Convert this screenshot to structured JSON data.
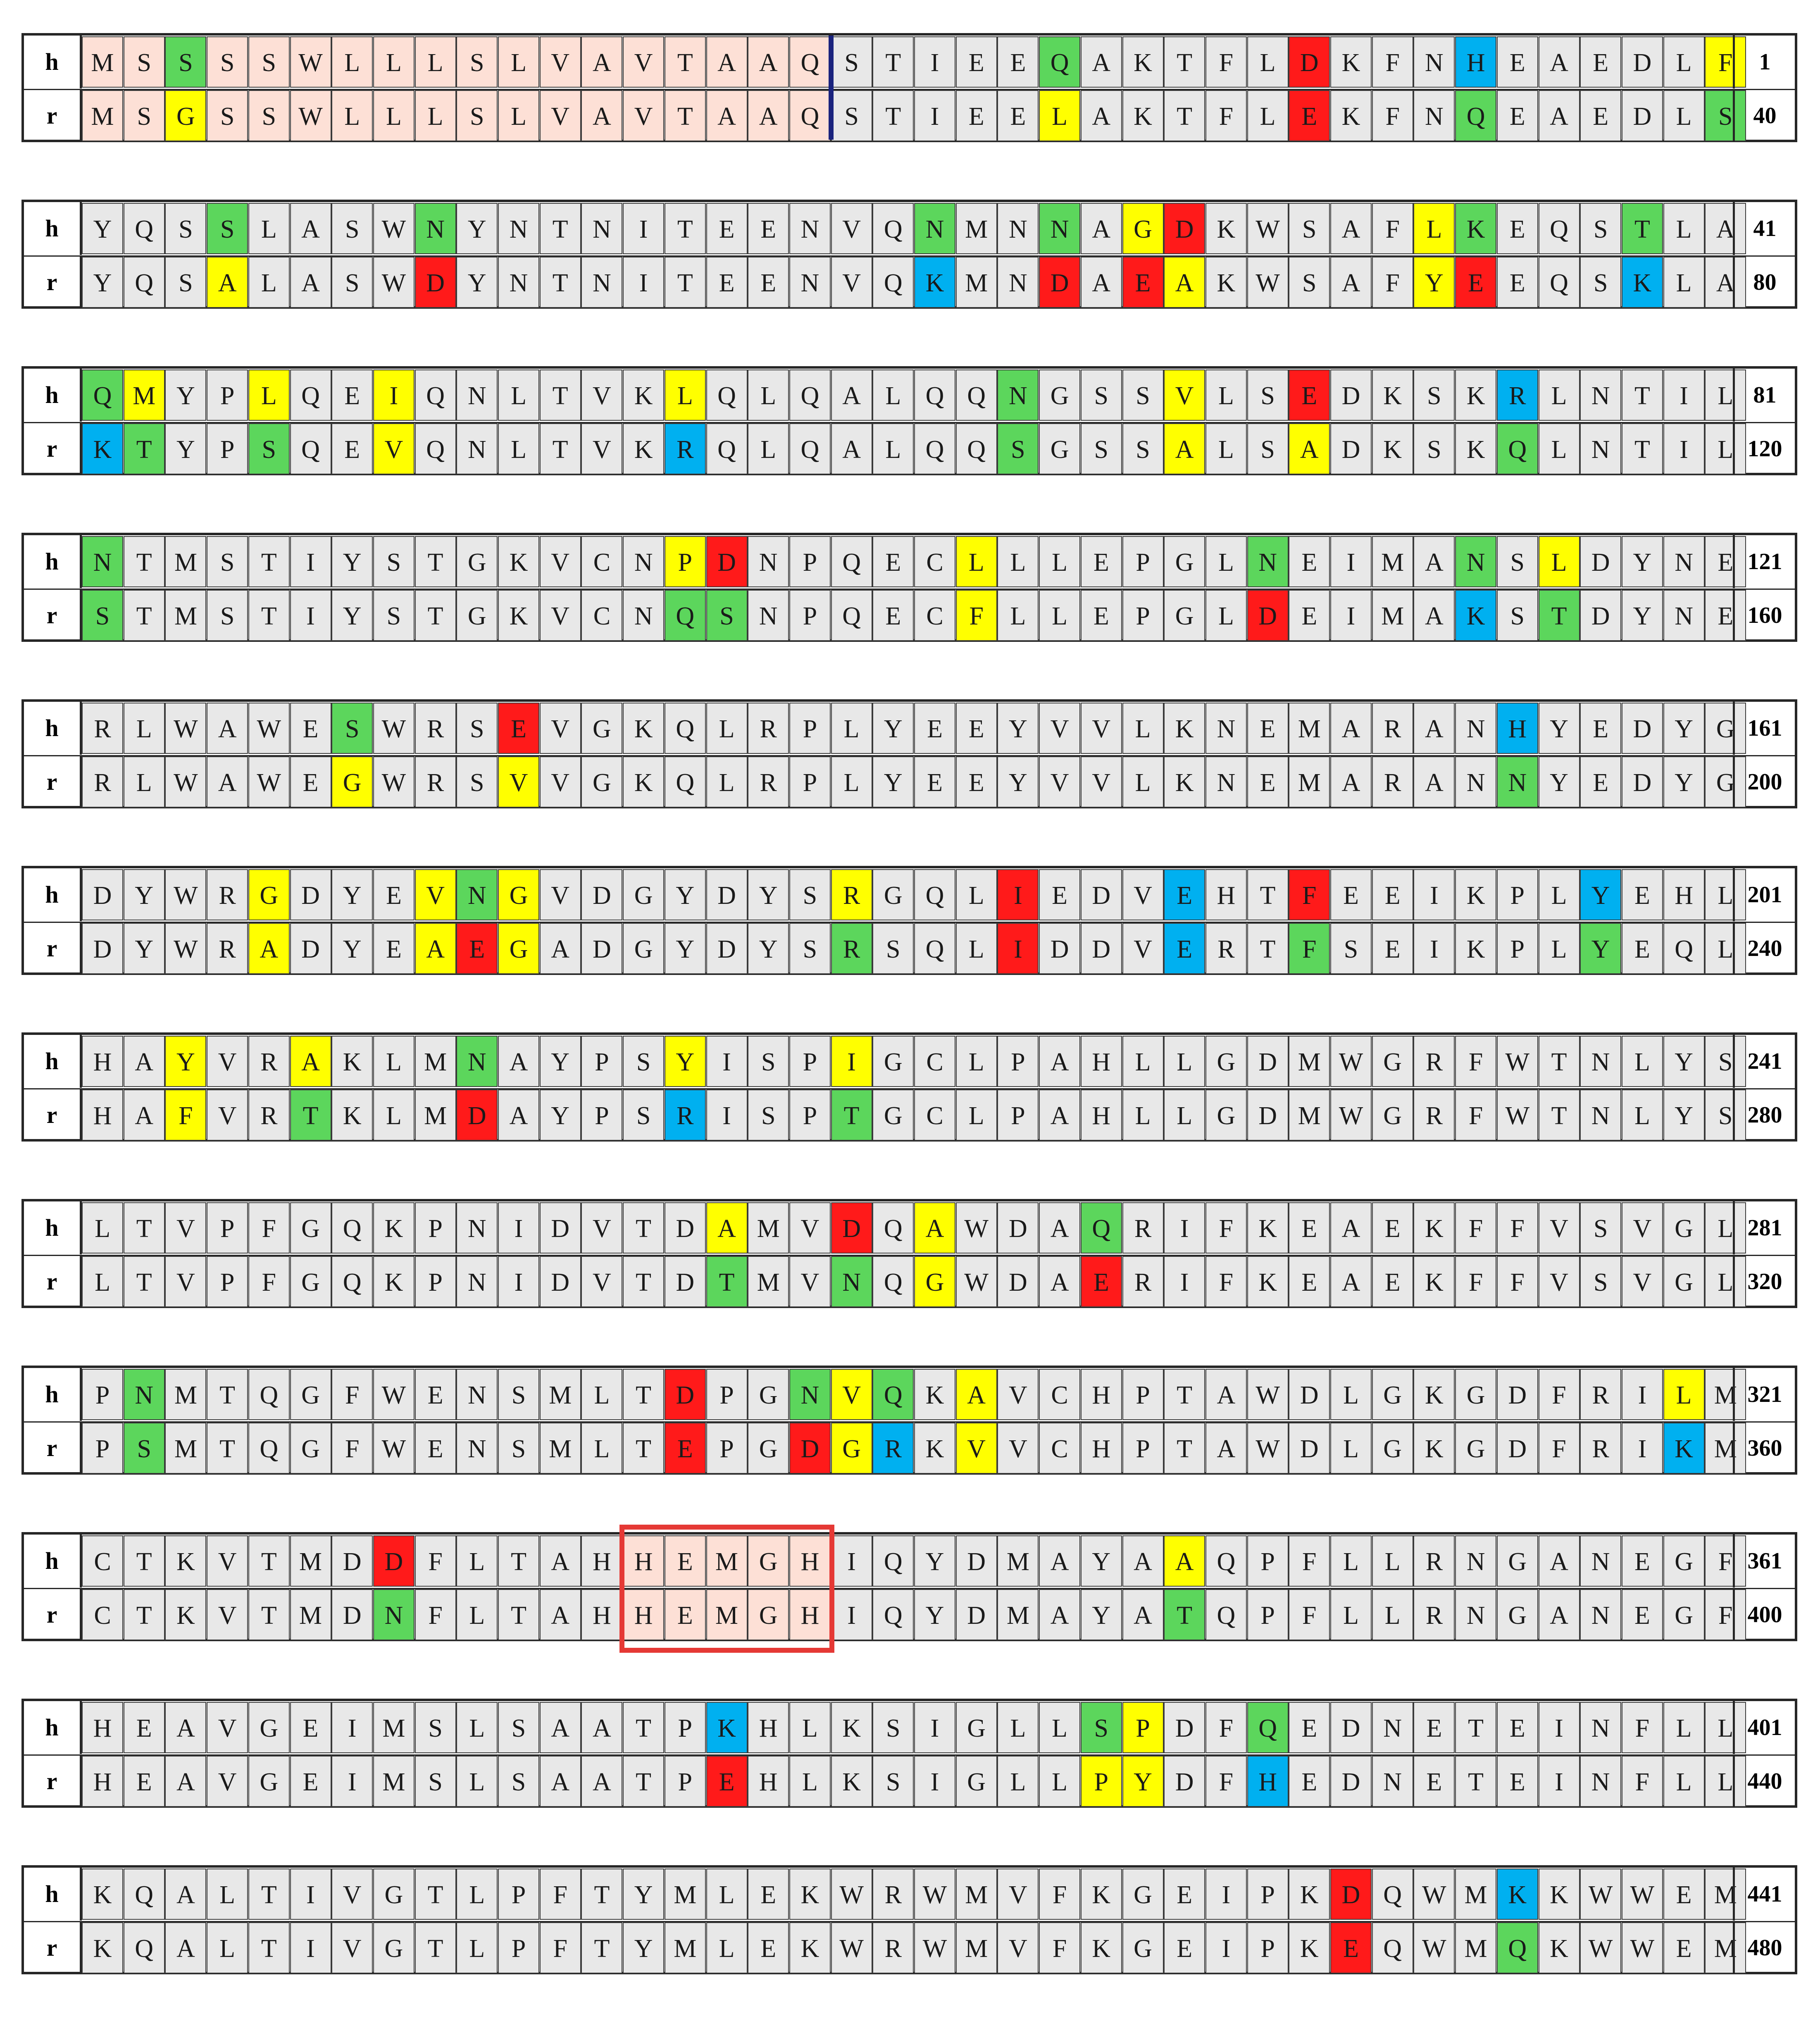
{
  "colors": {
    "identical": "#e8e8e8",
    "signal": "#fde0d6",
    "conservative": "#5cd65c",
    "semi": "#ffff00",
    "acidic": "#ff1a1a",
    "basic": "#00b0f0",
    "motif_border": "#e53935",
    "cleavage_mark": "#1a237e"
  },
  "labels": {
    "human": "h",
    "rat": "r"
  },
  "blocks": [
    {
      "h_start": "1",
      "r_end": "40",
      "h": "MSSSSWLLLSLVAVTAAQSTIEEQAKTFLDKFNHEAEDLF",
      "r": "MSGSSWLLLSLVAVTAAQSTIEELAKTFLEKFNQEAEDLS",
      "hc": "ppgppppppppppppppp.....g.....a...b.....y",
      "rc": "ppyppppppppppppppp.....y.....a...g.....g"
    },
    {
      "h_start": "41",
      "r_end": "80",
      "h": "YQSSLASWNYNTNITEENVQNMNNAGDKWSAFLKEQSTLA",
      "r": "YQSALASWDYNTNITEENVQKMNDAEAKWSAFYEEQSKLA",
      "hc": "...g....g...........g..g.ya.....yg...g..",
      "rc": "...y....a...........b..a.ay.....ya...b.."
    },
    {
      "h_start": "81",
      "r_end": "120",
      "h": "QMYPLQEIQNLTVKLQLQALQQNGSSVLSEDKSKRLNTIL",
      "r": "KTYPSQEVQNLTVKRQLQALQQSGSSALSADKSKQLNTIL",
      "hc": "gy..y..y......y.......g...y..a....b.....",
      "rc": "bg..g..y......b.......g...y..y....g....."
    },
    {
      "h_start": "121",
      "r_end": "160",
      "h": "NTMSTIYSTGKVCNPDNPQECLLLEPGLNEIMANSLDYNE",
      "r": "STMSTIYSTGKVCNQSNPQECFLLEPGLDEIMAKSTDYNE",
      "hc": "g.............ya.....y......g....g.y....",
      "rc": "g.............gg.....y......a....b.g...."
    },
    {
      "h_start": "161",
      "r_end": "200",
      "h": "RLWAWESWRSEVGKQLRPLYEEYVVLKNEMARANHYEDYG",
      "r": "RLWAWEGWRSVVGKQLRPLYEEYVVLKNEMARANNYEDYG",
      "hc": "......g...a.......................b.....",
      "rc": "......y...y.......................g....."
    },
    {
      "h_start": "201",
      "r_end": "240",
      "h": "DYWRGDYEVNGVDGYDYSRGQLIEDVEHTFEEIKPLYEHL",
      "r": "DYWRADYEAEGADGYDYSRSQLIDDVERTFSEIKPLYEQL",
      "hc": "....y...ygy.......y...a...b..a......b.",
      "rc": "....y...yay.......g...a...b..g......g."
    },
    {
      "h_start": "241",
      "r_end": "280",
      "h": "HAYVRAKLMNAYPSYISPIGCLPAHLLGDMWGRFWTNLYS",
      "r": "HAFVRTKLMDAYPSRISPTGCLPAHLLGDMWGRFWTNLYS",
      "hc": "..y..y...g....y...y.....................",
      "rc": "..y..g...a....b...g....................."
    },
    {
      "h_start": "281",
      "r_end": "320",
      "h": "LTVPFGQKPNIDVTDAMVDQAWDAQRIFKEAEKFFVSVGL",
      "r": "LTVPFGQKPNIDVTDTMVNQGWDAERIFKEAEKFFVSVGL",
      "hc": "...............y..a.y...g...............",
      "rc": "...............g..g.y...a..............."
    },
    {
      "h_start": "321",
      "r_end": "360",
      "h": "PNMTQGFWENSMLTDPGNVQKAVCHPTAWDLGKGDFRILM",
      "r": "PSMTQGFWENSMLTEPGDGRKVVCHPTAWDLGKGDFRIKM",
      "hc": ".g............a..gyg.y................y.",
      "rc": ".g............a..ayb.y................b."
    },
    {
      "h_start": "361",
      "r_end": "400",
      "h": "CTKVTMDDFLTAHHEMGHIQYDMAYAAQPFLLRNGANEGF",
      "r": "CTKVTMDNFLTAHHEMGHIQYDMAYATQPFLLRNGANEGF",
      "hc": ".......a.....ppppp........y.............",
      "rc": ".......g.....ppppp........g............."
    },
    {
      "h_start": "401",
      "r_end": "440",
      "h": "HEAVGEIMSLSAATPKHLKSIGLLSPDFQEDNETEINFLL",
      "r": "HEAVGEIMSLSAATPEHLKSIGLLPYDFHEDNETEINFLL",
      "hc": "...............b........gy..g...........",
      "rc": "...............a........yy..b..........."
    },
    {
      "h_start": "441",
      "r_end": "480",
      "h": "KQALTIVGTLPFTYMLEKWRWMVFKGEIPKDQWMKKWWEM",
      "r": "KQALTIVGTLPFTYMLEKWRWMVFKGEIPKEQWMQKWWEM",
      "hc": "..............................a...b.....",
      "rc": "..............................a...g....."
    }
  ]
}
